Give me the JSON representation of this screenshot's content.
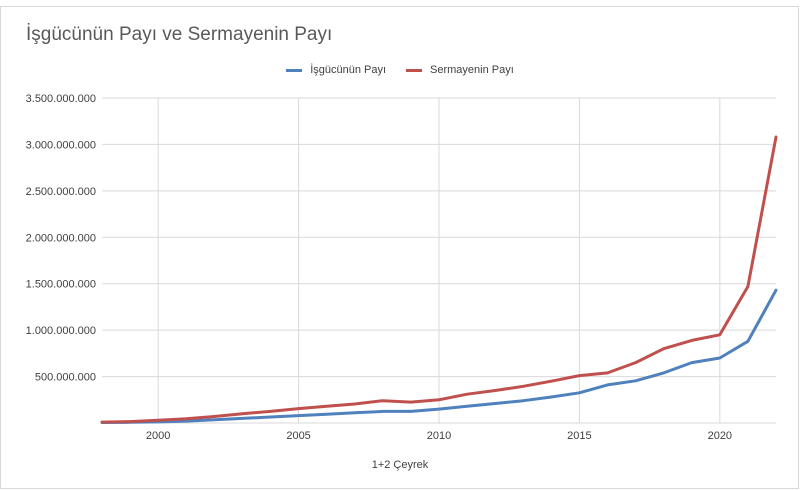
{
  "chart_data": {
    "type": "line",
    "title": "İşgücünün Payı ve Sermayenin Payı",
    "xlabel": "1+2 Çeyrek",
    "ylabel": "",
    "legend_position": "top",
    "grid": true,
    "x": [
      1998,
      1999,
      2000,
      2001,
      2002,
      2003,
      2004,
      2005,
      2006,
      2007,
      2008,
      2009,
      2010,
      2011,
      2012,
      2013,
      2014,
      2015,
      2016,
      2017,
      2018,
      2019,
      2020,
      2021,
      2022
    ],
    "xlim": [
      1998,
      2022
    ],
    "x_ticks": [
      2000,
      2005,
      2010,
      2015,
      2020
    ],
    "x_tick_labels": [
      "2000",
      "2005",
      "2010",
      "2015",
      "2020"
    ],
    "ylim": [
      0,
      3500000000
    ],
    "y_ticks": [
      500000000,
      1000000000,
      1500000000,
      2000000000,
      2500000000,
      3000000000,
      3500000000
    ],
    "y_tick_labels": [
      "500.000.000",
      "1.000.000.000",
      "1.500.000.000",
      "2.000.000.000",
      "2.500.000.000",
      "3.000.000.000",
      "3.500.000.000"
    ],
    "series": [
      {
        "name": "İşgücünün Payı",
        "color": "#4f81bd",
        "values": [
          5000000,
          8000000,
          12000000,
          20000000,
          35000000,
          50000000,
          65000000,
          80000000,
          95000000,
          110000000,
          125000000,
          125000000,
          150000000,
          180000000,
          210000000,
          240000000,
          280000000,
          325000000,
          410000000,
          455000000,
          540000000,
          650000000,
          700000000,
          880000000,
          1430000000
        ]
      },
      {
        "name": "Sermayenin Payı",
        "color": "#c0504d",
        "values": [
          10000000,
          15000000,
          30000000,
          45000000,
          70000000,
          100000000,
          125000000,
          155000000,
          180000000,
          205000000,
          240000000,
          225000000,
          250000000,
          310000000,
          350000000,
          395000000,
          450000000,
          510000000,
          540000000,
          650000000,
          800000000,
          890000000,
          950000000,
          1470000000,
          3080000000
        ]
      }
    ]
  },
  "colors": {
    "gridline": "#d9d9d9",
    "axis_text": "#404040",
    "title_text": "#595959"
  }
}
